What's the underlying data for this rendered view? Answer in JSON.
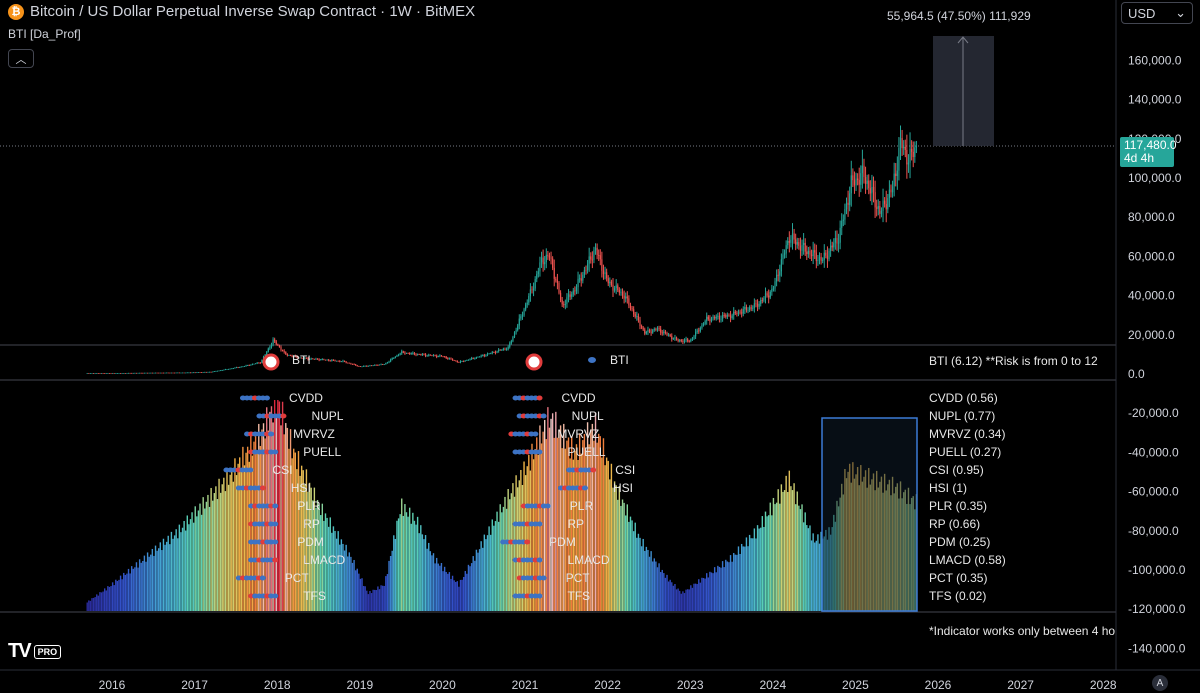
{
  "header": {
    "symbol_icon": "bitcoin-icon",
    "title": "Bitcoin / US Dollar Perpetual Inverse Swap Contract · 1W · BitMEX",
    "indicator_label": "BTI [Da_Prof]",
    "collapse_icon": "chevron-up-icon",
    "currency": "USD"
  },
  "measure": {
    "label": "55,964.5 (47.50%) 111,929"
  },
  "price_tag": {
    "price": "117,480.0",
    "countdown": "4d 4h",
    "color": "#26a69a"
  },
  "bti": {
    "marker_label_1": "BTI",
    "marker_label_2": "BTI",
    "legend": "BTI (6.12) **Risk is from 0 to 12",
    "note": "*Indicator works only between 4 ho"
  },
  "metrics": [
    {
      "name": "CVDD",
      "legend": "CVDD (0.56)"
    },
    {
      "name": "NUPL",
      "legend": "NUPL (0.77)"
    },
    {
      "name": "MVRVZ",
      "legend": "MVRVZ (0.34)"
    },
    {
      "name": "PUELL",
      "legend": "PUELL (0.27)"
    },
    {
      "name": "CSI",
      "legend": "CSI (0.95)"
    },
    {
      "name": "HSI",
      "legend": "HSI (1)"
    },
    {
      "name": "PLR",
      "legend": "PLR (0.35)"
    },
    {
      "name": "RP",
      "legend": "RP (0.66)"
    },
    {
      "name": "PDM",
      "legend": "PDM (0.25)"
    },
    {
      "name": "LMACD",
      "legend": "LMACD (0.58)"
    },
    {
      "name": "PCT",
      "legend": "PCT (0.35)"
    },
    {
      "name": "TFS",
      "legend": "TFS (0.02)"
    }
  ],
  "logo": {
    "mark": "TV",
    "badge": "PRO"
  },
  "auto_button": "A",
  "chart_data": {
    "type": "line",
    "title": "Bitcoin / US Dollar Perpetual Inverse Swap Contract · 1W · BitMEX",
    "xlabel": "",
    "ylabel": "",
    "x_ticks": [
      "2016",
      "2017",
      "2018",
      "2019",
      "2020",
      "2021",
      "2022",
      "2023",
      "2024",
      "2025",
      "2026",
      "2027",
      "2028"
    ],
    "y_ticks": [
      "160,000.0",
      "140,000.0",
      "120,000.0",
      "100,000.0",
      "80,000.0",
      "60,000.0",
      "40,000.0",
      "20,000.0",
      "0.0",
      "-20,000.0",
      "-40,000.0",
      "-60,000.0",
      "-80,000.0",
      "-100,000.0",
      "-120,000.0",
      "-140,000.0"
    ],
    "ylim": [
      -145000,
      175000
    ],
    "grid": false,
    "series": [
      {
        "name": "",
        "x": [
          2015.7,
          2016.0,
          2016.5,
          2016.9,
          2017.2,
          2017.4,
          2017.6,
          2017.8,
          2017.95,
          2018.0,
          2018.1,
          2018.3,
          2018.5,
          2018.8,
          2019.0,
          2019.3,
          2019.5,
          2019.7,
          2020.0,
          2020.2,
          2020.5,
          2020.8,
          2020.95,
          2021.1,
          2021.2,
          2021.3,
          2021.45,
          2021.6,
          2021.75,
          2021.85,
          2022.0,
          2022.2,
          2022.45,
          2022.6,
          2022.85,
          2023.0,
          2023.2,
          2023.5,
          2023.8,
          2024.0,
          2024.2,
          2024.4,
          2024.6,
          2024.8,
          2024.95,
          2025.1,
          2025.3,
          2025.45,
          2025.55,
          2025.65,
          2025.75
        ],
        "values": [
          400,
          430,
          650,
          750,
          1100,
          2500,
          4000,
          6000,
          17000,
          15000,
          10000,
          8000,
          7500,
          6400,
          3800,
          5000,
          11000,
          10000,
          9000,
          6000,
          9500,
          13500,
          29000,
          45000,
          58000,
          60000,
          35000,
          43000,
          55000,
          64000,
          47000,
          40000,
          21000,
          23000,
          17000,
          17000,
          28000,
          30000,
          35000,
          43000,
          70000,
          63000,
          58000,
          70000,
          97000,
          102000,
          82000,
          95000,
          118000,
          109000,
          117480
        ]
      },
      {
        "name": "BTI",
        "x": [
          2015.7,
          2016.0,
          2016.4,
          2016.8,
          2017.0,
          2017.4,
          2017.8,
          2018.0,
          2018.2,
          2018.5,
          2018.9,
          2019.1,
          2019.3,
          2019.5,
          2019.7,
          2019.9,
          2020.2,
          2020.5,
          2020.8,
          2021.0,
          2021.3,
          2021.6,
          2021.85,
          2022.1,
          2022.4,
          2022.7,
          2022.9,
          2023.2,
          2023.5,
          2023.8,
          2024.0,
          2024.2,
          2024.5,
          2024.7,
          2024.9,
          2025.2,
          2025.5,
          2025.75
        ],
        "values": [
          0.5,
          1.5,
          3,
          4.5,
          5.5,
          7.5,
          10,
          12,
          9,
          6,
          3,
          1,
          1.5,
          6,
          5,
          3,
          1.5,
          4,
          6.5,
          8,
          11,
          9,
          10.5,
          7,
          4,
          2,
          1,
          2,
          3,
          4.5,
          6,
          7.5,
          4,
          4.5,
          8,
          7.5,
          7,
          6.12
        ]
      }
    ],
    "annotations": [
      "55,964.5 (47.50%) 111,929",
      "117,480.0",
      "4d 4h",
      "BTI (6.12) **Risk is from 0 to 12"
    ]
  }
}
